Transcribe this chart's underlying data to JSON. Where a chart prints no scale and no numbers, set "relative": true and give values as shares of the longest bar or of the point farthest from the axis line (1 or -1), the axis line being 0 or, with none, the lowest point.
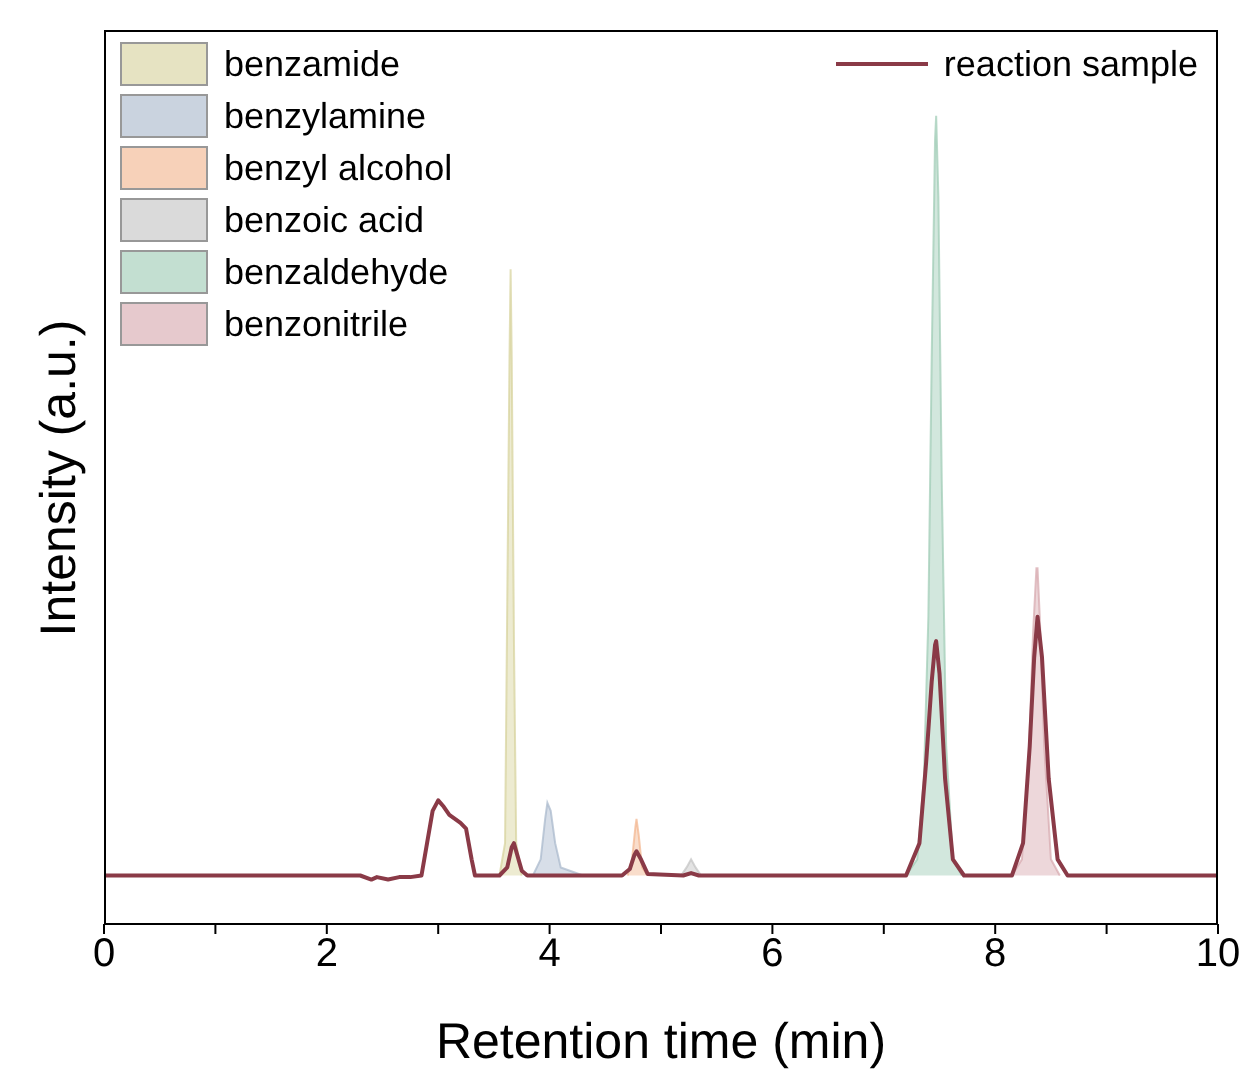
{
  "chart_data": {
    "type": "area",
    "relative": true,
    "xlabel": "Retention time (min)",
    "ylabel": "Intensity (a.u.)",
    "xlim": [
      0,
      10
    ],
    "xticks": [
      0,
      {
        "value": 1,
        "label": null
      },
      2,
      {
        "value": 3,
        "label": null
      },
      4,
      {
        "value": 5,
        "label": null
      },
      6,
      {
        "value": 7,
        "label": null
      },
      8,
      {
        "value": 9,
        "label": null
      },
      10
    ],
    "legend": "top",
    "series": [
      {
        "name": "benzamide",
        "color": "#d6d29a",
        "x": [
          3.55,
          3.6,
          3.62,
          3.64,
          3.65,
          3.66,
          3.68,
          3.7,
          3.75
        ],
        "values": [
          0.06,
          0.1,
          0.4,
          0.7,
          0.81,
          0.7,
          0.35,
          0.1,
          0.06
        ]
      },
      {
        "name": "benzylamine",
        "color": "#a7b6cb",
        "x": [
          3.85,
          3.92,
          3.96,
          3.98,
          4.01,
          4.05,
          4.1,
          4.2,
          4.3
        ],
        "values": [
          0.06,
          0.08,
          0.13,
          0.15,
          0.14,
          0.1,
          0.07,
          0.065,
          0.06
        ]
      },
      {
        "name": "benzyl alcohol",
        "color": "#f2b48c",
        "x": [
          4.7,
          4.74,
          4.77,
          4.78,
          4.8,
          4.83,
          4.88
        ],
        "values": [
          0.06,
          0.08,
          0.12,
          0.13,
          0.11,
          0.07,
          0.06
        ]
      },
      {
        "name": "benzoic acid",
        "color": "#c2c2c2",
        "x": [
          5.18,
          5.23,
          5.27,
          5.31,
          5.36
        ],
        "values": [
          0.06,
          0.07,
          0.08,
          0.07,
          0.06
        ]
      },
      {
        "name": "benzaldehyde",
        "color": "#9ccab3",
        "x": [
          7.2,
          7.3,
          7.36,
          7.4,
          7.43,
          7.46,
          7.47,
          7.49,
          7.52,
          7.56,
          7.62,
          7.7
        ],
        "values": [
          0.06,
          0.08,
          0.18,
          0.38,
          0.7,
          0.97,
          1.0,
          0.9,
          0.55,
          0.22,
          0.08,
          0.06
        ]
      },
      {
        "name": "benzonitrile",
        "color": "#d6a6ad",
        "x": [
          8.15,
          8.24,
          8.3,
          8.34,
          8.37,
          8.38,
          8.4,
          8.44,
          8.5,
          8.58
        ],
        "values": [
          0.06,
          0.08,
          0.2,
          0.36,
          0.44,
          0.44,
          0.38,
          0.22,
          0.08,
          0.06
        ]
      },
      {
        "name": "reaction sample",
        "type": "line",
        "color": "#8a3a47",
        "x": [
          0,
          2.3,
          2.4,
          2.45,
          2.55,
          2.65,
          2.75,
          2.85,
          2.9,
          2.95,
          3.0,
          3.05,
          3.1,
          3.2,
          3.25,
          3.3,
          3.33,
          3.55,
          3.62,
          3.66,
          3.68,
          3.7,
          3.75,
          3.8,
          4.65,
          4.72,
          4.76,
          4.78,
          4.82,
          4.88,
          5.2,
          5.27,
          5.34,
          7.2,
          7.32,
          7.38,
          7.43,
          7.46,
          7.47,
          7.5,
          7.55,
          7.62,
          7.72,
          8.15,
          8.25,
          8.31,
          8.35,
          8.38,
          8.42,
          8.48,
          8.56,
          8.65,
          10
        ],
        "values": [
          0.06,
          0.06,
          0.055,
          0.058,
          0.055,
          0.058,
          0.058,
          0.06,
          0.1,
          0.14,
          0.153,
          0.145,
          0.135,
          0.125,
          0.118,
          0.08,
          0.06,
          0.06,
          0.07,
          0.095,
          0.1,
          0.09,
          0.066,
          0.06,
          0.06,
          0.068,
          0.085,
          0.09,
          0.08,
          0.062,
          0.06,
          0.063,
          0.06,
          0.06,
          0.1,
          0.2,
          0.3,
          0.345,
          0.35,
          0.31,
          0.18,
          0.08,
          0.06,
          0.06,
          0.1,
          0.22,
          0.33,
          0.38,
          0.33,
          0.18,
          0.08,
          0.06,
          0.06
        ]
      }
    ]
  }
}
